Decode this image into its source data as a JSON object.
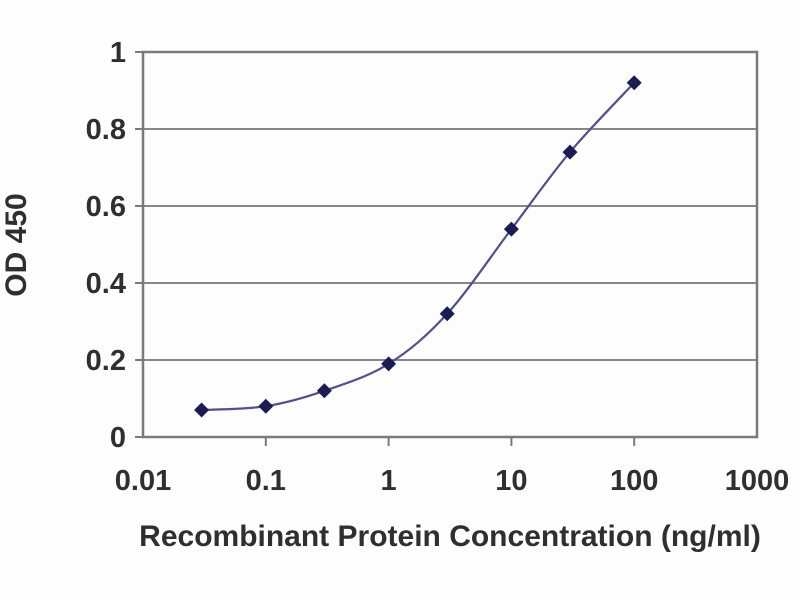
{
  "chart_data": {
    "type": "line",
    "title": "",
    "xlabel": "Recombinant Protein Concentration (ng/ml)",
    "ylabel": "OD 450",
    "x_scale": "log",
    "xlim": [
      0.01,
      1000
    ],
    "ylim": [
      0,
      1
    ],
    "x_ticks": [
      {
        "value": 0.01,
        "label": "0.01"
      },
      {
        "value": 0.1,
        "label": "0.1"
      },
      {
        "value": 1,
        "label": "1"
      },
      {
        "value": 10,
        "label": "10"
      },
      {
        "value": 100,
        "label": "100"
      },
      {
        "value": 1000,
        "label": "1000"
      }
    ],
    "y_ticks": [
      {
        "value": 0,
        "label": "0"
      },
      {
        "value": 0.2,
        "label": "0.2"
      },
      {
        "value": 0.4,
        "label": "0.4"
      },
      {
        "value": 0.6,
        "label": "0.6"
      },
      {
        "value": 0.8,
        "label": "0.8"
      },
      {
        "value": 1,
        "label": "1"
      }
    ],
    "grid": "horizontal",
    "legend": "none",
    "series": [
      {
        "name": "OD 450",
        "x": [
          0.03,
          0.1,
          0.3,
          1,
          3,
          10,
          30,
          100
        ],
        "y": [
          0.07,
          0.08,
          0.12,
          0.19,
          0.32,
          0.54,
          0.74,
          0.92
        ]
      }
    ],
    "colors": {
      "line": "#50508e",
      "marker": "#1c1c55",
      "grid": "#878787",
      "axis": "#7a7a7a",
      "text": "#2f2f2f",
      "background": "#fdfdfd"
    }
  }
}
